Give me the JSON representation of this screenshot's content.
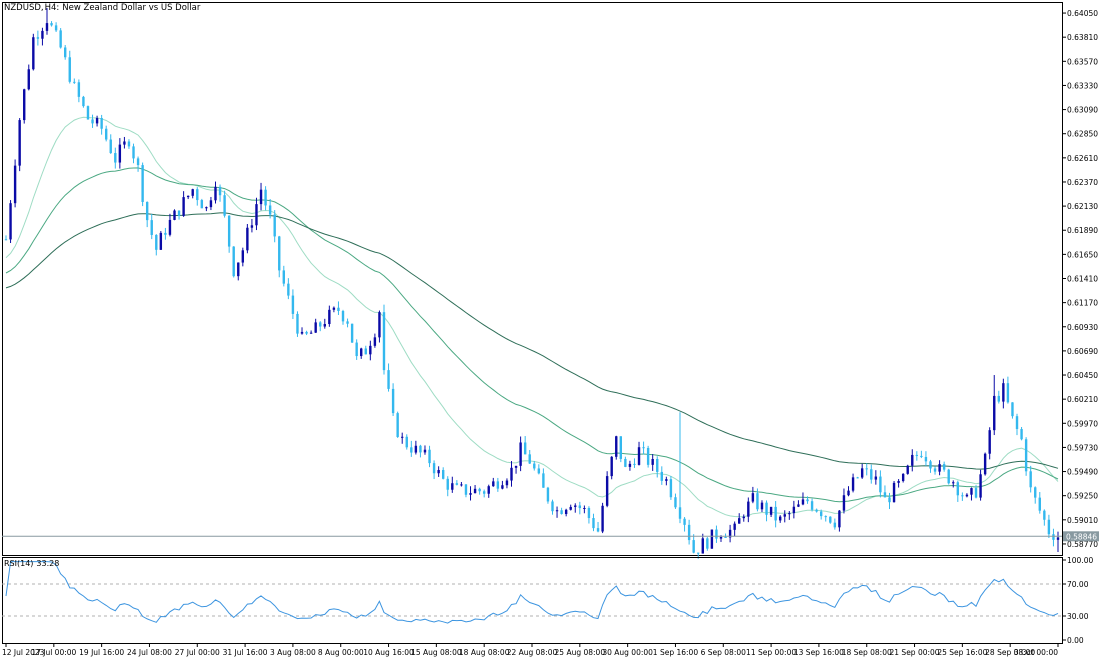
{
  "chart_data": {
    "type": "candlestick",
    "symbol_label": "NZDUSD",
    "timeframe_label": "H4:",
    "description": "New Zealand Dollar vs US Dollar",
    "bid_label": "0.58846",
    "price_axis": {
      "ylim": [
        0.5867,
        0.6415
      ],
      "ticks": [
        "0.64050",
        "0.63810",
        "0.63570",
        "0.63330",
        "0.63090",
        "0.62850",
        "0.62610",
        "0.62370",
        "0.62130",
        "0.61890",
        "0.61650",
        "0.61410",
        "0.61170",
        "0.60930",
        "0.60690",
        "0.60450",
        "0.60210",
        "0.59970",
        "0.59730",
        "0.59490",
        "0.59250",
        "0.59010",
        "0.58770"
      ]
    },
    "time_axis": {
      "labels": [
        "12 Jul 2023",
        "17 Jul 00:00",
        "19 Jul 16:00",
        "24 Jul 08:00",
        "27 Jul 00:00",
        "31 Jul 16:00",
        "3 Aug 08:00",
        "8 Aug 00:00",
        "10 Aug 16:00",
        "15 Aug 08:00",
        "18 Aug 08:00",
        "22 Aug 08:00",
        "25 Aug 08:00",
        "30 Aug 00:00",
        "1 Sep 16:00",
        "6 Sep 08:00",
        "11 Sep 00:00",
        "13 Sep 16:00",
        "18 Sep 08:00",
        "21 Sep 00:00",
        "25 Sep 16:00",
        "28 Sep 08:00",
        "3 Oct 00:00"
      ]
    },
    "close_path": [
      [
        0,
        0.618
      ],
      [
        3,
        0.63
      ],
      [
        6,
        0.638
      ],
      [
        9,
        0.64
      ],
      [
        12,
        0.637
      ],
      [
        15,
        0.633
      ],
      [
        18,
        0.63
      ],
      [
        21,
        0.629
      ],
      [
        24,
        0.626
      ],
      [
        27,
        0.628
      ],
      [
        29,
        0.625
      ],
      [
        31,
        0.62
      ],
      [
        33,
        0.617
      ],
      [
        35,
        0.619
      ],
      [
        38,
        0.621
      ],
      [
        41,
        0.623
      ],
      [
        44,
        0.621
      ],
      [
        46,
        0.624
      ],
      [
        48,
        0.62
      ],
      [
        50,
        0.615
      ],
      [
        52,
        0.617
      ],
      [
        54,
        0.62
      ],
      [
        56,
        0.623
      ],
      [
        58,
        0.62
      ],
      [
        60,
        0.615
      ],
      [
        62,
        0.612
      ],
      [
        65,
        0.608
      ],
      [
        68,
        0.609
      ],
      [
        70,
        0.61
      ],
      [
        73,
        0.611
      ],
      [
        75,
        0.61
      ],
      [
        77,
        0.606
      ],
      [
        79,
        0.607
      ],
      [
        81,
        0.609
      ],
      [
        82,
        0.611
      ],
      [
        83,
        0.605
      ],
      [
        85,
        0.6
      ],
      [
        87,
        0.598
      ],
      [
        90,
        0.597
      ],
      [
        93,
        0.596
      ],
      [
        96,
        0.594
      ],
      [
        99,
        0.593
      ],
      [
        102,
        0.593
      ],
      [
        105,
        0.593
      ],
      [
        108,
        0.594
      ],
      [
        111,
        0.595
      ],
      [
        113,
        0.597
      ],
      [
        115,
        0.596
      ],
      [
        118,
        0.593
      ],
      [
        121,
        0.591
      ],
      [
        124,
        0.592
      ],
      [
        127,
        0.591
      ],
      [
        130,
        0.589
      ],
      [
        132,
        0.594
      ],
      [
        134,
        0.598
      ],
      [
        136,
        0.595
      ],
      [
        139,
        0.597
      ],
      [
        141,
        0.596
      ],
      [
        143,
        0.595
      ],
      [
        145,
        0.594
      ],
      [
        147,
        0.592
      ],
      [
        149,
        0.59
      ],
      [
        151,
        0.587
      ],
      [
        154,
        0.588
      ],
      [
        157,
        0.589
      ],
      [
        160,
        0.589
      ],
      [
        162,
        0.591
      ],
      [
        164,
        0.592
      ],
      [
        167,
        0.591
      ],
      [
        170,
        0.59
      ],
      [
        173,
        0.591
      ],
      [
        176,
        0.592
      ],
      [
        179,
        0.591
      ],
      [
        182,
        0.59
      ],
      [
        185,
        0.593
      ],
      [
        188,
        0.595
      ],
      [
        191,
        0.594
      ],
      [
        193,
        0.592
      ],
      [
        195,
        0.593
      ],
      [
        197,
        0.594
      ],
      [
        199,
        0.596
      ],
      [
        201,
        0.597
      ],
      [
        203,
        0.596
      ],
      [
        205,
        0.595
      ],
      [
        208,
        0.594
      ],
      [
        211,
        0.592
      ],
      [
        213,
        0.593
      ],
      [
        215,
        0.596
      ],
      [
        217,
        0.602
      ],
      [
        219,
        0.603
      ],
      [
        221,
        0.6
      ],
      [
        223,
        0.598
      ],
      [
        225,
        0.593
      ],
      [
        227,
        0.591
      ],
      [
        229,
        0.589
      ],
      [
        231,
        0.5885
      ]
    ],
    "indicator": {
      "label": "RSI(14)",
      "value": "33.28",
      "ylim": [
        0,
        100
      ],
      "ticks": [
        "100.00",
        "70.00",
        "30.00",
        "0.00"
      ],
      "levels": [
        70,
        30
      ]
    }
  }
}
